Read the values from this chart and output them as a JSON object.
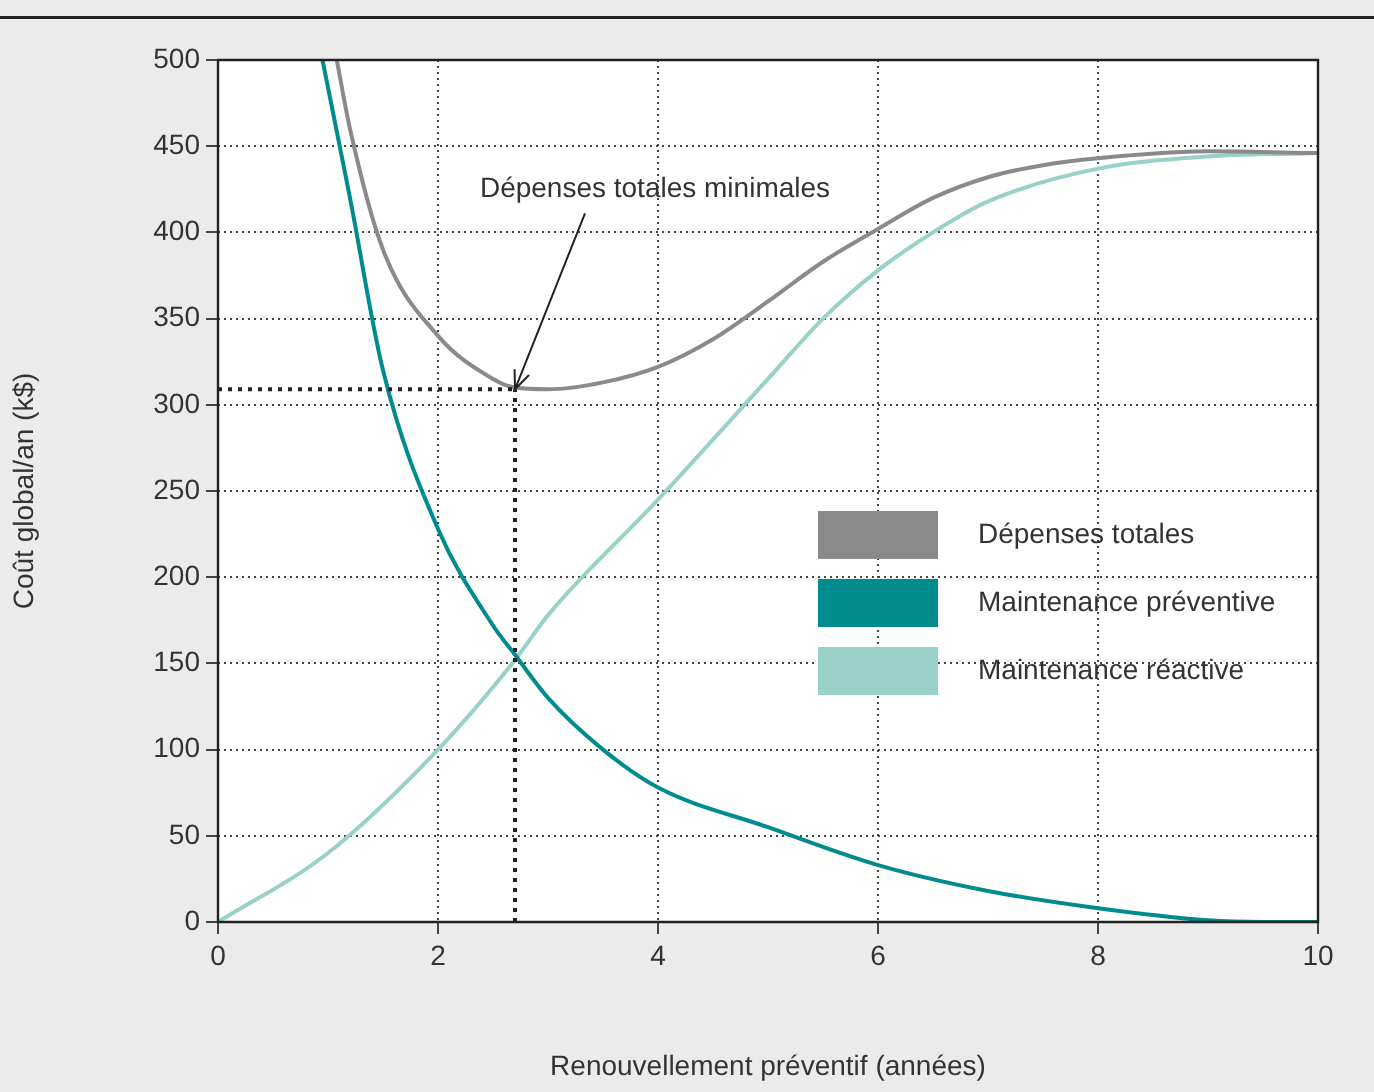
{
  "chart_data": {
    "type": "line",
    "xlabel": "Renouvellement préventif (années)",
    "ylabel": "Coût global/an (k$)",
    "xlim": [
      0,
      10
    ],
    "xticks": [
      0,
      2,
      4,
      6,
      8,
      10
    ],
    "ylim": [
      0,
      500
    ],
    "yticks": [
      0,
      50,
      100,
      150,
      200,
      250,
      300,
      350,
      400,
      450,
      500
    ],
    "grid": true,
    "legend": "right",
    "line_style": "solid",
    "marker": "none",
    "annotations": [
      {
        "text": "Dépenses totales minimales",
        "x": 2.7,
        "y": 309
      }
    ],
    "ref_lines": [
      {
        "axis": "x",
        "value": 2.7,
        "line_style": "dotted",
        "color": "#222222"
      },
      {
        "axis": "y",
        "value": 309,
        "line_style": "dotted",
        "color": "#222222"
      }
    ],
    "series": [
      {
        "name": "Dépenses totales",
        "color": "#8a8a8a",
        "x": [
          1.08,
          1.2,
          1.5,
          2,
          2.5,
          2.7,
          3,
          3.5,
          4,
          4.5,
          5,
          5.5,
          6,
          6.5,
          7,
          7.5,
          8,
          9,
          10
        ],
        "values": [
          500,
          460,
          390,
          340,
          315,
          310,
          309,
          313,
          322,
          338,
          360,
          383,
          402,
          420,
          432,
          439,
          443,
          447,
          446
        ]
      },
      {
        "name": "Maintenance préventive",
        "color": "#008b8f",
        "x": [
          0.95,
          1.2,
          1.5,
          2,
          2.5,
          2.7,
          3,
          3.5,
          4,
          5,
          6,
          7,
          8,
          9,
          9.5,
          10
        ],
        "values": [
          500,
          420,
          320,
          228,
          172,
          155,
          130,
          100,
          78,
          55,
          33,
          18,
          8,
          1,
          0,
          0
        ]
      },
      {
        "name": "Maintenance réactive",
        "color": "#99d1c8",
        "x": [
          0,
          1,
          2,
          2.7,
          3,
          4,
          5,
          5.5,
          6,
          6.5,
          7,
          8,
          9,
          10
        ],
        "values": [
          0,
          40,
          100,
          152,
          178,
          245,
          315,
          350,
          378,
          400,
          418,
          437,
          444,
          446
        ]
      }
    ]
  }
}
